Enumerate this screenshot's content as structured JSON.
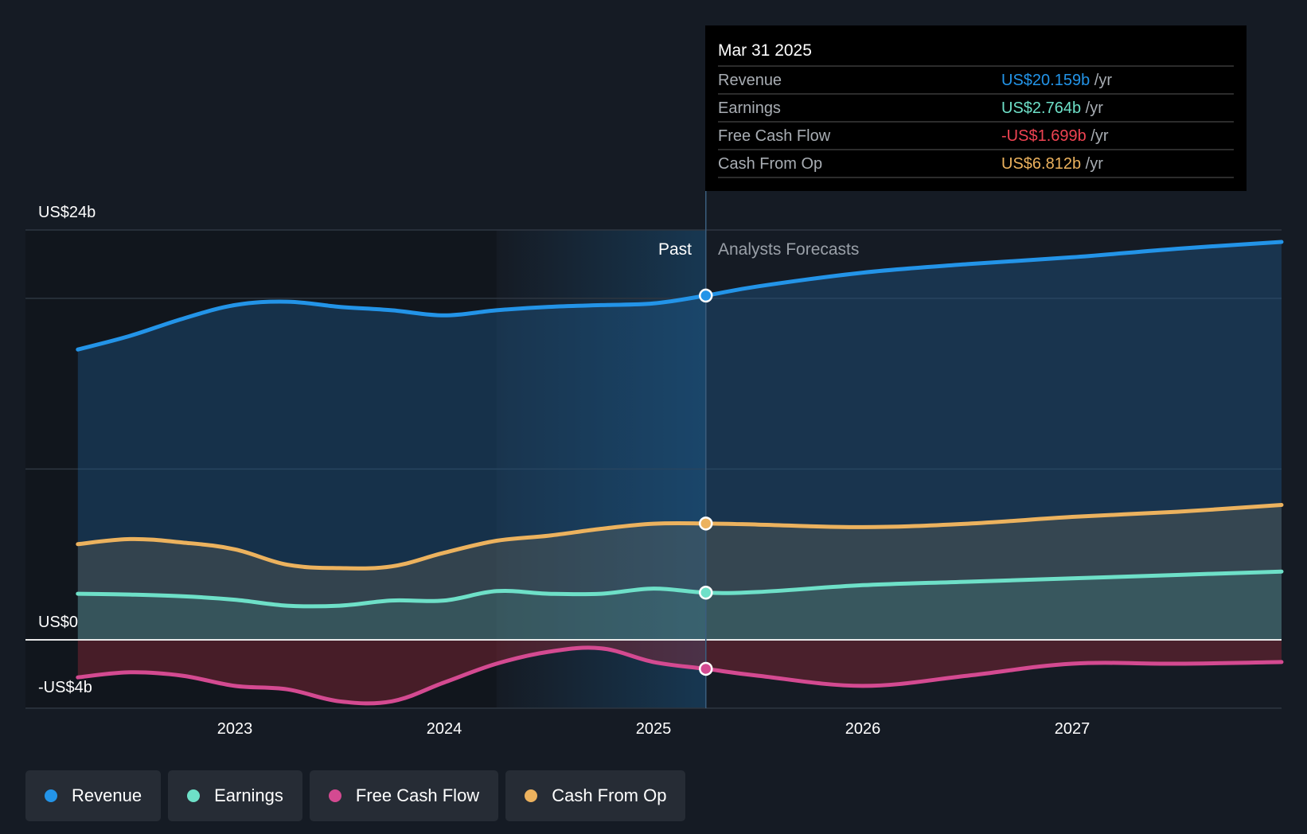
{
  "tooltip": {
    "date": "Mar 31 2025",
    "rows": [
      {
        "label": "Revenue",
        "value": "US$20.159b",
        "unit": "/yr",
        "color": "#2394e8"
      },
      {
        "label": "Earnings",
        "value": "US$2.764b",
        "unit": "/yr",
        "color": "#6ee0c8"
      },
      {
        "label": "Free Cash Flow",
        "value": "-US$1.699b",
        "unit": "/yr",
        "color": "#ef4352"
      },
      {
        "label": "Cash From Op",
        "value": "US$6.812b",
        "unit": "/yr",
        "color": "#ecb25e"
      }
    ]
  },
  "regions": {
    "past_label": "Past",
    "forecast_label": "Analysts Forecasts"
  },
  "legend": [
    {
      "label": "Revenue",
      "color": "#2394e8"
    },
    {
      "label": "Earnings",
      "color": "#6ee0c8"
    },
    {
      "label": "Free Cash Flow",
      "color": "#d44a91"
    },
    {
      "label": "Cash From Op",
      "color": "#ecb25e"
    }
  ],
  "chart_data": {
    "type": "area",
    "title": "",
    "xlabel": "",
    "ylabel": "",
    "x_ticks": [
      "2023",
      "2024",
      "2025",
      "2026",
      "2027"
    ],
    "x_tick_values": [
      2023,
      2024,
      2025,
      2026,
      2027
    ],
    "y_tick_labels": [
      {
        "value": 24,
        "label": "US$24b"
      },
      {
        "value": 0,
        "label": "US$0"
      },
      {
        "value": -4,
        "label": "-US$4b"
      }
    ],
    "ylim": [
      -4,
      24
    ],
    "xlim": [
      2022.0,
      2028.0
    ],
    "grid": true,
    "past_highlight_range": [
      2024.25,
      2025.25
    ],
    "divider_x": 2025.25,
    "series": [
      {
        "name": "Revenue",
        "color": "#2394e8",
        "points": [
          [
            2022.25,
            17.0
          ],
          [
            2022.5,
            17.8
          ],
          [
            2022.75,
            18.8
          ],
          [
            2023.0,
            19.6
          ],
          [
            2023.25,
            19.8
          ],
          [
            2023.5,
            19.5
          ],
          [
            2023.75,
            19.3
          ],
          [
            2024.0,
            19.0
          ],
          [
            2024.25,
            19.3
          ],
          [
            2024.5,
            19.5
          ],
          [
            2024.75,
            19.6
          ],
          [
            2025.0,
            19.7
          ],
          [
            2025.25,
            20.159
          ],
          [
            2025.5,
            20.7
          ],
          [
            2026.0,
            21.5
          ],
          [
            2026.5,
            22.0
          ],
          [
            2027.0,
            22.4
          ],
          [
            2027.5,
            22.9
          ],
          [
            2028.0,
            23.3
          ]
        ]
      },
      {
        "name": "Earnings",
        "color": "#6ee0c8",
        "points": [
          [
            2022.25,
            2.7
          ],
          [
            2022.5,
            2.65
          ],
          [
            2022.75,
            2.55
          ],
          [
            2023.0,
            2.35
          ],
          [
            2023.25,
            2.0
          ],
          [
            2023.5,
            2.0
          ],
          [
            2023.75,
            2.3
          ],
          [
            2024.0,
            2.3
          ],
          [
            2024.25,
            2.85
          ],
          [
            2024.5,
            2.7
          ],
          [
            2024.75,
            2.7
          ],
          [
            2025.0,
            3.0
          ],
          [
            2025.25,
            2.764
          ],
          [
            2025.5,
            2.8
          ],
          [
            2026.0,
            3.2
          ],
          [
            2026.5,
            3.4
          ],
          [
            2027.0,
            3.6
          ],
          [
            2027.5,
            3.8
          ],
          [
            2028.0,
            4.0
          ]
        ]
      },
      {
        "name": "Free Cash Flow",
        "color": "#d44a91",
        "points": [
          [
            2022.25,
            -2.2
          ],
          [
            2022.5,
            -1.9
          ],
          [
            2022.75,
            -2.1
          ],
          [
            2023.0,
            -2.7
          ],
          [
            2023.25,
            -2.9
          ],
          [
            2023.5,
            -3.6
          ],
          [
            2023.75,
            -3.6
          ],
          [
            2024.0,
            -2.5
          ],
          [
            2024.25,
            -1.4
          ],
          [
            2024.5,
            -0.7
          ],
          [
            2024.75,
            -0.5
          ],
          [
            2025.0,
            -1.3
          ],
          [
            2025.25,
            -1.699
          ],
          [
            2025.5,
            -2.1
          ],
          [
            2026.0,
            -2.7
          ],
          [
            2026.5,
            -2.1
          ],
          [
            2027.0,
            -1.4
          ],
          [
            2027.5,
            -1.4
          ],
          [
            2028.0,
            -1.3
          ]
        ]
      },
      {
        "name": "Cash From Op",
        "color": "#ecb25e",
        "points": [
          [
            2022.25,
            5.6
          ],
          [
            2022.5,
            5.9
          ],
          [
            2022.75,
            5.7
          ],
          [
            2023.0,
            5.3
          ],
          [
            2023.25,
            4.4
          ],
          [
            2023.5,
            4.2
          ],
          [
            2023.75,
            4.3
          ],
          [
            2024.0,
            5.1
          ],
          [
            2024.25,
            5.8
          ],
          [
            2024.5,
            6.1
          ],
          [
            2024.75,
            6.5
          ],
          [
            2025.0,
            6.8
          ],
          [
            2025.25,
            6.812
          ],
          [
            2025.5,
            6.75
          ],
          [
            2026.0,
            6.6
          ],
          [
            2026.5,
            6.8
          ],
          [
            2027.0,
            7.2
          ],
          [
            2027.5,
            7.5
          ],
          [
            2028.0,
            7.9
          ]
        ]
      }
    ],
    "highlight": {
      "x": 2025.25,
      "label": "Mar 31 2025"
    }
  }
}
